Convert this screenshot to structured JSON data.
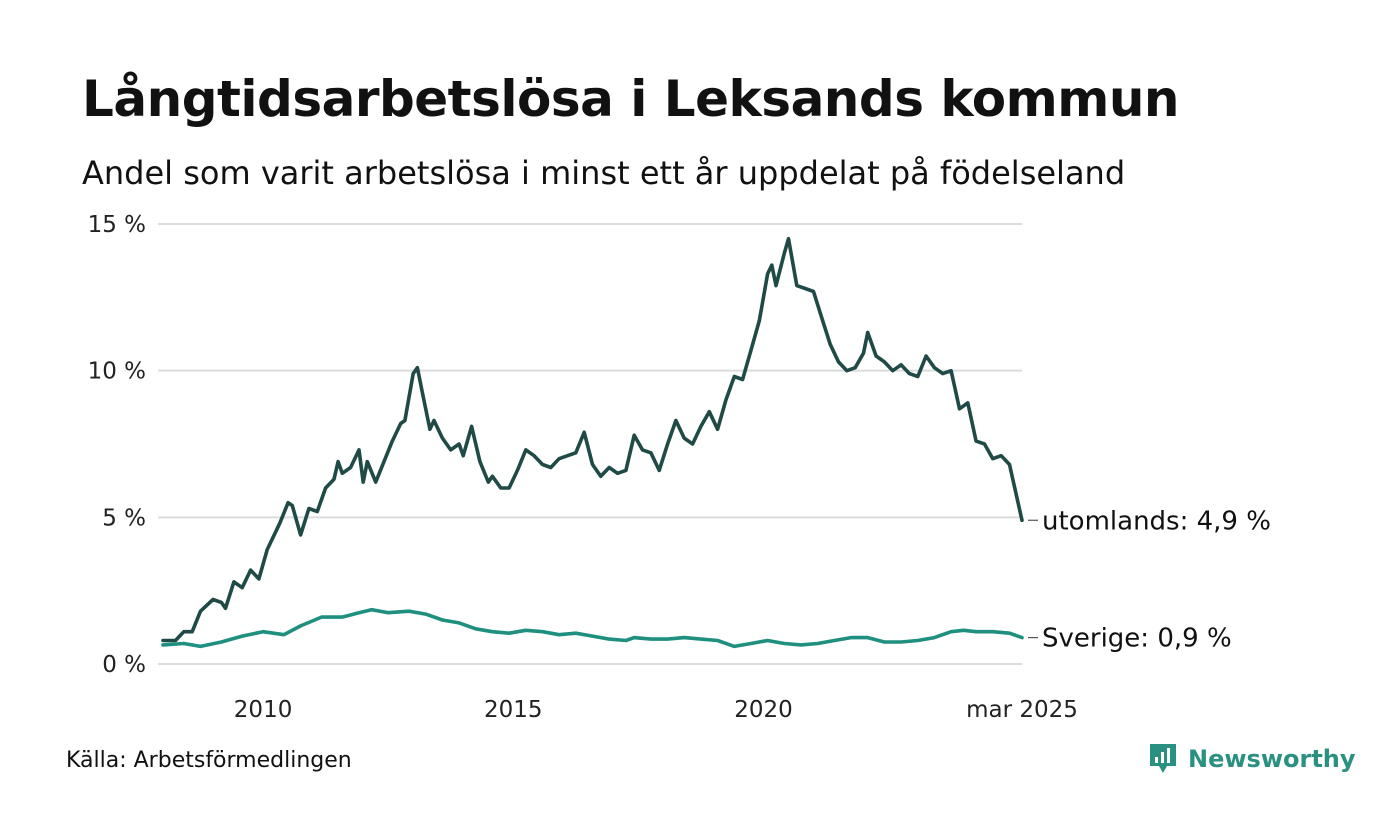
{
  "title": "Långtidsarbetslösa i Leksands kommun",
  "subtitle": "Andel som varit arbetslösa i minst ett år uppdelat på födelseland",
  "source": "Källa: Arbetsförmedlingen",
  "brand": {
    "name": "Newsworthy",
    "icon": "newsworthy-logo-icon",
    "color": "#2a9082"
  },
  "chart_data": {
    "type": "line",
    "x_range": [
      "2008-01",
      "2025-03"
    ],
    "ylim": [
      0,
      15
    ],
    "y_ticks": [
      {
        "v": 0,
        "label": "0 %"
      },
      {
        "v": 5,
        "label": "5 %"
      },
      {
        "v": 10,
        "label": "10 %"
      },
      {
        "v": 15,
        "label": "15 %"
      }
    ],
    "x_ticks": [
      {
        "d": "2010-01",
        "label": "2010"
      },
      {
        "d": "2015-01",
        "label": "2015"
      },
      {
        "d": "2020-01",
        "label": "2020"
      },
      {
        "d": "2025-03",
        "label": "mar 2025"
      }
    ],
    "grid": true,
    "series": [
      {
        "name": "utomlands",
        "end_label": "utomlands: 4,9 %",
        "color": "#1f4a45",
        "points": [
          [
            "2008-01",
            0.8
          ],
          [
            "2008-04",
            0.8
          ],
          [
            "2008-06",
            1.1
          ],
          [
            "2008-08",
            1.1
          ],
          [
            "2008-10",
            1.8
          ],
          [
            "2009-01",
            2.2
          ],
          [
            "2009-03",
            2.1
          ],
          [
            "2009-04",
            1.9
          ],
          [
            "2009-06",
            2.8
          ],
          [
            "2009-08",
            2.6
          ],
          [
            "2009-10",
            3.2
          ],
          [
            "2009-12",
            2.9
          ],
          [
            "2010-02",
            3.9
          ],
          [
            "2010-05",
            4.8
          ],
          [
            "2010-07",
            5.5
          ],
          [
            "2010-08",
            5.4
          ],
          [
            "2010-10",
            4.4
          ],
          [
            "2010-12",
            5.3
          ],
          [
            "2011-02",
            5.2
          ],
          [
            "2011-04",
            6.0
          ],
          [
            "2011-06",
            6.3
          ],
          [
            "2011-07",
            6.9
          ],
          [
            "2011-08",
            6.5
          ],
          [
            "2011-10",
            6.7
          ],
          [
            "2011-12",
            7.3
          ],
          [
            "2012-01",
            6.2
          ],
          [
            "2012-02",
            6.9
          ],
          [
            "2012-04",
            6.2
          ],
          [
            "2012-06",
            6.9
          ],
          [
            "2012-08",
            7.6
          ],
          [
            "2012-10",
            8.2
          ],
          [
            "2012-11",
            8.3
          ],
          [
            "2013-01",
            9.9
          ],
          [
            "2013-02",
            10.1
          ],
          [
            "2013-03",
            9.4
          ],
          [
            "2013-05",
            8.0
          ],
          [
            "2013-06",
            8.3
          ],
          [
            "2013-08",
            7.7
          ],
          [
            "2013-10",
            7.3
          ],
          [
            "2013-12",
            7.5
          ],
          [
            "2014-01",
            7.1
          ],
          [
            "2014-03",
            8.1
          ],
          [
            "2014-05",
            6.9
          ],
          [
            "2014-07",
            6.2
          ],
          [
            "2014-08",
            6.4
          ],
          [
            "2014-10",
            6.0
          ],
          [
            "2014-12",
            6.0
          ],
          [
            "2015-02",
            6.6
          ],
          [
            "2015-04",
            7.3
          ],
          [
            "2015-06",
            7.1
          ],
          [
            "2015-08",
            6.8
          ],
          [
            "2015-10",
            6.7
          ],
          [
            "2015-12",
            7.0
          ],
          [
            "2016-02",
            7.1
          ],
          [
            "2016-04",
            7.2
          ],
          [
            "2016-06",
            7.9
          ],
          [
            "2016-08",
            6.8
          ],
          [
            "2016-10",
            6.4
          ],
          [
            "2016-12",
            6.7
          ],
          [
            "2017-02",
            6.5
          ],
          [
            "2017-04",
            6.6
          ],
          [
            "2017-06",
            7.8
          ],
          [
            "2017-08",
            7.3
          ],
          [
            "2017-10",
            7.2
          ],
          [
            "2017-12",
            6.6
          ],
          [
            "2018-02",
            7.5
          ],
          [
            "2018-04",
            8.3
          ],
          [
            "2018-06",
            7.7
          ],
          [
            "2018-08",
            7.5
          ],
          [
            "2018-10",
            8.1
          ],
          [
            "2018-12",
            8.6
          ],
          [
            "2019-02",
            8.0
          ],
          [
            "2019-04",
            9.0
          ],
          [
            "2019-06",
            9.8
          ],
          [
            "2019-08",
            9.7
          ],
          [
            "2019-10",
            10.7
          ],
          [
            "2019-12",
            11.7
          ],
          [
            "2020-02",
            13.3
          ],
          [
            "2020-03",
            13.6
          ],
          [
            "2020-04",
            12.9
          ],
          [
            "2020-06",
            14.0
          ],
          [
            "2020-07",
            14.5
          ],
          [
            "2020-09",
            12.9
          ],
          [
            "2020-11",
            12.8
          ],
          [
            "2021-01",
            12.7
          ],
          [
            "2021-03",
            11.8
          ],
          [
            "2021-05",
            10.9
          ],
          [
            "2021-07",
            10.3
          ],
          [
            "2021-09",
            10.0
          ],
          [
            "2021-11",
            10.1
          ],
          [
            "2022-01",
            10.6
          ],
          [
            "2022-02",
            11.3
          ],
          [
            "2022-04",
            10.5
          ],
          [
            "2022-06",
            10.3
          ],
          [
            "2022-08",
            10.0
          ],
          [
            "2022-10",
            10.2
          ],
          [
            "2022-12",
            9.9
          ],
          [
            "2023-02",
            9.8
          ],
          [
            "2023-04",
            10.5
          ],
          [
            "2023-06",
            10.1
          ],
          [
            "2023-08",
            9.9
          ],
          [
            "2023-10",
            10.0
          ],
          [
            "2023-12",
            8.7
          ],
          [
            "2024-02",
            8.9
          ],
          [
            "2024-04",
            7.6
          ],
          [
            "2024-06",
            7.5
          ],
          [
            "2024-08",
            7.0
          ],
          [
            "2024-10",
            7.1
          ],
          [
            "2024-12",
            6.8
          ],
          [
            "2025-03",
            4.9
          ]
        ]
      },
      {
        "name": "Sverige",
        "end_label": "Sverige: 0,9 %",
        "color": "#1f8f80",
        "points": [
          [
            "2008-01",
            0.65
          ],
          [
            "2008-06",
            0.7
          ],
          [
            "2008-10",
            0.6
          ],
          [
            "2009-03",
            0.75
          ],
          [
            "2009-08",
            0.95
          ],
          [
            "2010-01",
            1.1
          ],
          [
            "2010-06",
            1.0
          ],
          [
            "2010-10",
            1.3
          ],
          [
            "2011-03",
            1.6
          ],
          [
            "2011-08",
            1.6
          ],
          [
            "2011-12",
            1.75
          ],
          [
            "2012-03",
            1.85
          ],
          [
            "2012-07",
            1.75
          ],
          [
            "2012-12",
            1.8
          ],
          [
            "2013-04",
            1.7
          ],
          [
            "2013-08",
            1.5
          ],
          [
            "2013-12",
            1.4
          ],
          [
            "2014-04",
            1.2
          ],
          [
            "2014-08",
            1.1
          ],
          [
            "2014-12",
            1.05
          ],
          [
            "2015-04",
            1.15
          ],
          [
            "2015-08",
            1.1
          ],
          [
            "2015-12",
            1.0
          ],
          [
            "2016-04",
            1.05
          ],
          [
            "2016-08",
            0.95
          ],
          [
            "2016-12",
            0.85
          ],
          [
            "2017-04",
            0.8
          ],
          [
            "2017-06",
            0.9
          ],
          [
            "2017-10",
            0.85
          ],
          [
            "2018-02",
            0.85
          ],
          [
            "2018-06",
            0.9
          ],
          [
            "2018-10",
            0.85
          ],
          [
            "2019-02",
            0.8
          ],
          [
            "2019-06",
            0.6
          ],
          [
            "2019-10",
            0.7
          ],
          [
            "2020-02",
            0.8
          ],
          [
            "2020-06",
            0.7
          ],
          [
            "2020-10",
            0.65
          ],
          [
            "2021-02",
            0.7
          ],
          [
            "2021-06",
            0.8
          ],
          [
            "2021-10",
            0.9
          ],
          [
            "2022-02",
            0.9
          ],
          [
            "2022-06",
            0.75
          ],
          [
            "2022-10",
            0.75
          ],
          [
            "2023-02",
            0.8
          ],
          [
            "2023-06",
            0.9
          ],
          [
            "2023-10",
            1.1
          ],
          [
            "2024-01",
            1.15
          ],
          [
            "2024-04",
            1.1
          ],
          [
            "2024-08",
            1.1
          ],
          [
            "2024-12",
            1.05
          ],
          [
            "2025-03",
            0.9
          ]
        ]
      }
    ]
  }
}
